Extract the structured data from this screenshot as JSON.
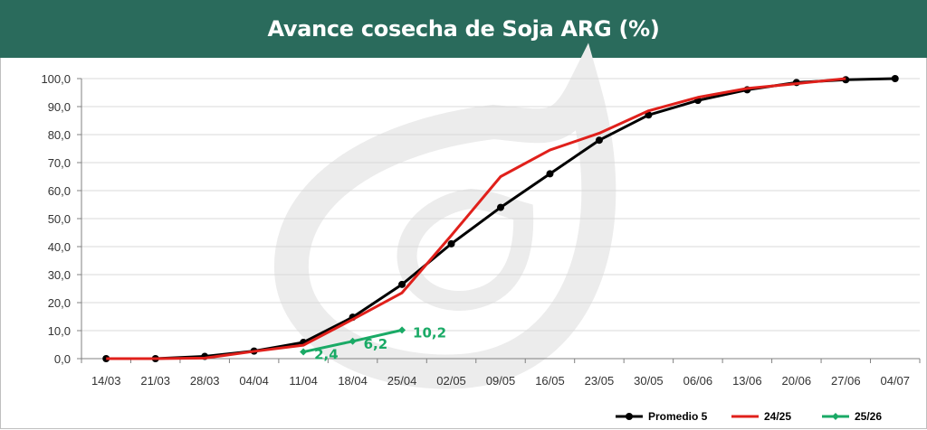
{
  "header": {
    "title": "Avance cosecha de Soja ARG (%)"
  },
  "colors": {
    "header_bg": "#2a6b5c",
    "promedio": "#000000",
    "season_2425": "#e0201b",
    "season_2526": "#1aaa66",
    "watermark": "#ececec"
  },
  "chart_data": {
    "type": "line",
    "title": "Avance cosecha de Soja ARG (%)",
    "xlabel": "",
    "ylabel": "",
    "ylim": [
      0,
      100
    ],
    "yticks": [
      "0,0",
      "10,0",
      "20,0",
      "30,0",
      "40,0",
      "50,0",
      "60,0",
      "70,0",
      "80,0",
      "90,0",
      "100,0"
    ],
    "categories": [
      "14/03",
      "21/03",
      "28/03",
      "04/04",
      "11/04",
      "18/04",
      "25/04",
      "02/05",
      "09/05",
      "16/05",
      "23/05",
      "30/05",
      "06/06",
      "13/06",
      "20/06",
      "27/06",
      "04/07"
    ],
    "grid": true,
    "legend_position": "bottom-right",
    "series": [
      {
        "name": "Promedio 5",
        "color": "#000000",
        "marker": "circle",
        "values": [
          0.0,
          0.0,
          0.8,
          2.7,
          5.8,
          14.8,
          26.5,
          41.0,
          54.0,
          66.0,
          78.0,
          87.0,
          92.2,
          96.0,
          98.6,
          99.6,
          100.0
        ]
      },
      {
        "name": "24/25",
        "color": "#e0201b",
        "marker": "none",
        "values": [
          0.0,
          0.0,
          0.2,
          2.6,
          4.8,
          14.0,
          23.5,
          44.0,
          65.0,
          74.5,
          80.5,
          88.5,
          93.3,
          96.5,
          98.2,
          100.0,
          null
        ]
      },
      {
        "name": "25/26",
        "color": "#1aaa66",
        "marker": "diamond",
        "values": [
          null,
          null,
          null,
          null,
          2.4,
          6.2,
          10.2,
          null,
          null,
          null,
          null,
          null,
          null,
          null,
          null,
          null,
          null
        ],
        "data_labels": [
          "2,4",
          "6,2",
          "10,2"
        ]
      }
    ]
  }
}
